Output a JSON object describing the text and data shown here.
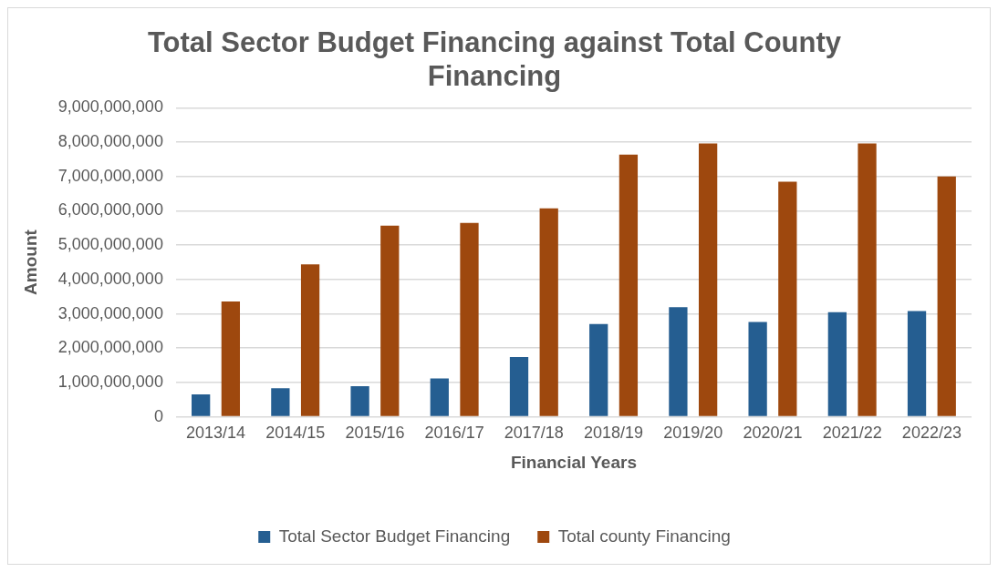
{
  "chart_data": {
    "type": "bar",
    "title": "Total Sector Budget Financing against Total County Financing",
    "xlabel": "Financial Years",
    "ylabel": "Amount",
    "categories": [
      "2013/14",
      "2014/15",
      "2015/16",
      "2016/17",
      "2017/18",
      "2018/19",
      "2019/20",
      "2020/21",
      "2021/22",
      "2022/23"
    ],
    "series": [
      {
        "name": "Total Sector Budget Financing",
        "color": "#255e91",
        "values": [
          650000000,
          830000000,
          890000000,
          1120000000,
          1740000000,
          2700000000,
          3190000000,
          2760000000,
          3050000000,
          3080000000
        ]
      },
      {
        "name": "Total county Financing",
        "color": "#9e480e",
        "values": [
          3360000000,
          4440000000,
          5570000000,
          5650000000,
          6070000000,
          7640000000,
          7960000000,
          6850000000,
          7960000000,
          7000000000
        ]
      }
    ],
    "ylim": [
      0,
      9000000000
    ],
    "yticks": [
      0,
      {
        "value": 1000000000,
        "label": "1,000,000,000"
      },
      {
        "value": 2000000000,
        "label": "2,000,000,000"
      },
      {
        "value": 3000000000,
        "label": "3,000,000,000"
      },
      {
        "value": 4000000000,
        "label": "4,000,000,000"
      },
      {
        "value": 5000000000,
        "label": "5,000,000,000"
      },
      {
        "value": 6000000000,
        "label": "6,000,000,000"
      },
      {
        "value": 7000000000,
        "label": "7,000,000,000"
      },
      {
        "value": 8000000000,
        "label": "8,000,000,000"
      },
      {
        "value": 9000000000,
        "label": "9,000,000,000"
      }
    ],
    "grid": "y",
    "legend": "bottom"
  }
}
